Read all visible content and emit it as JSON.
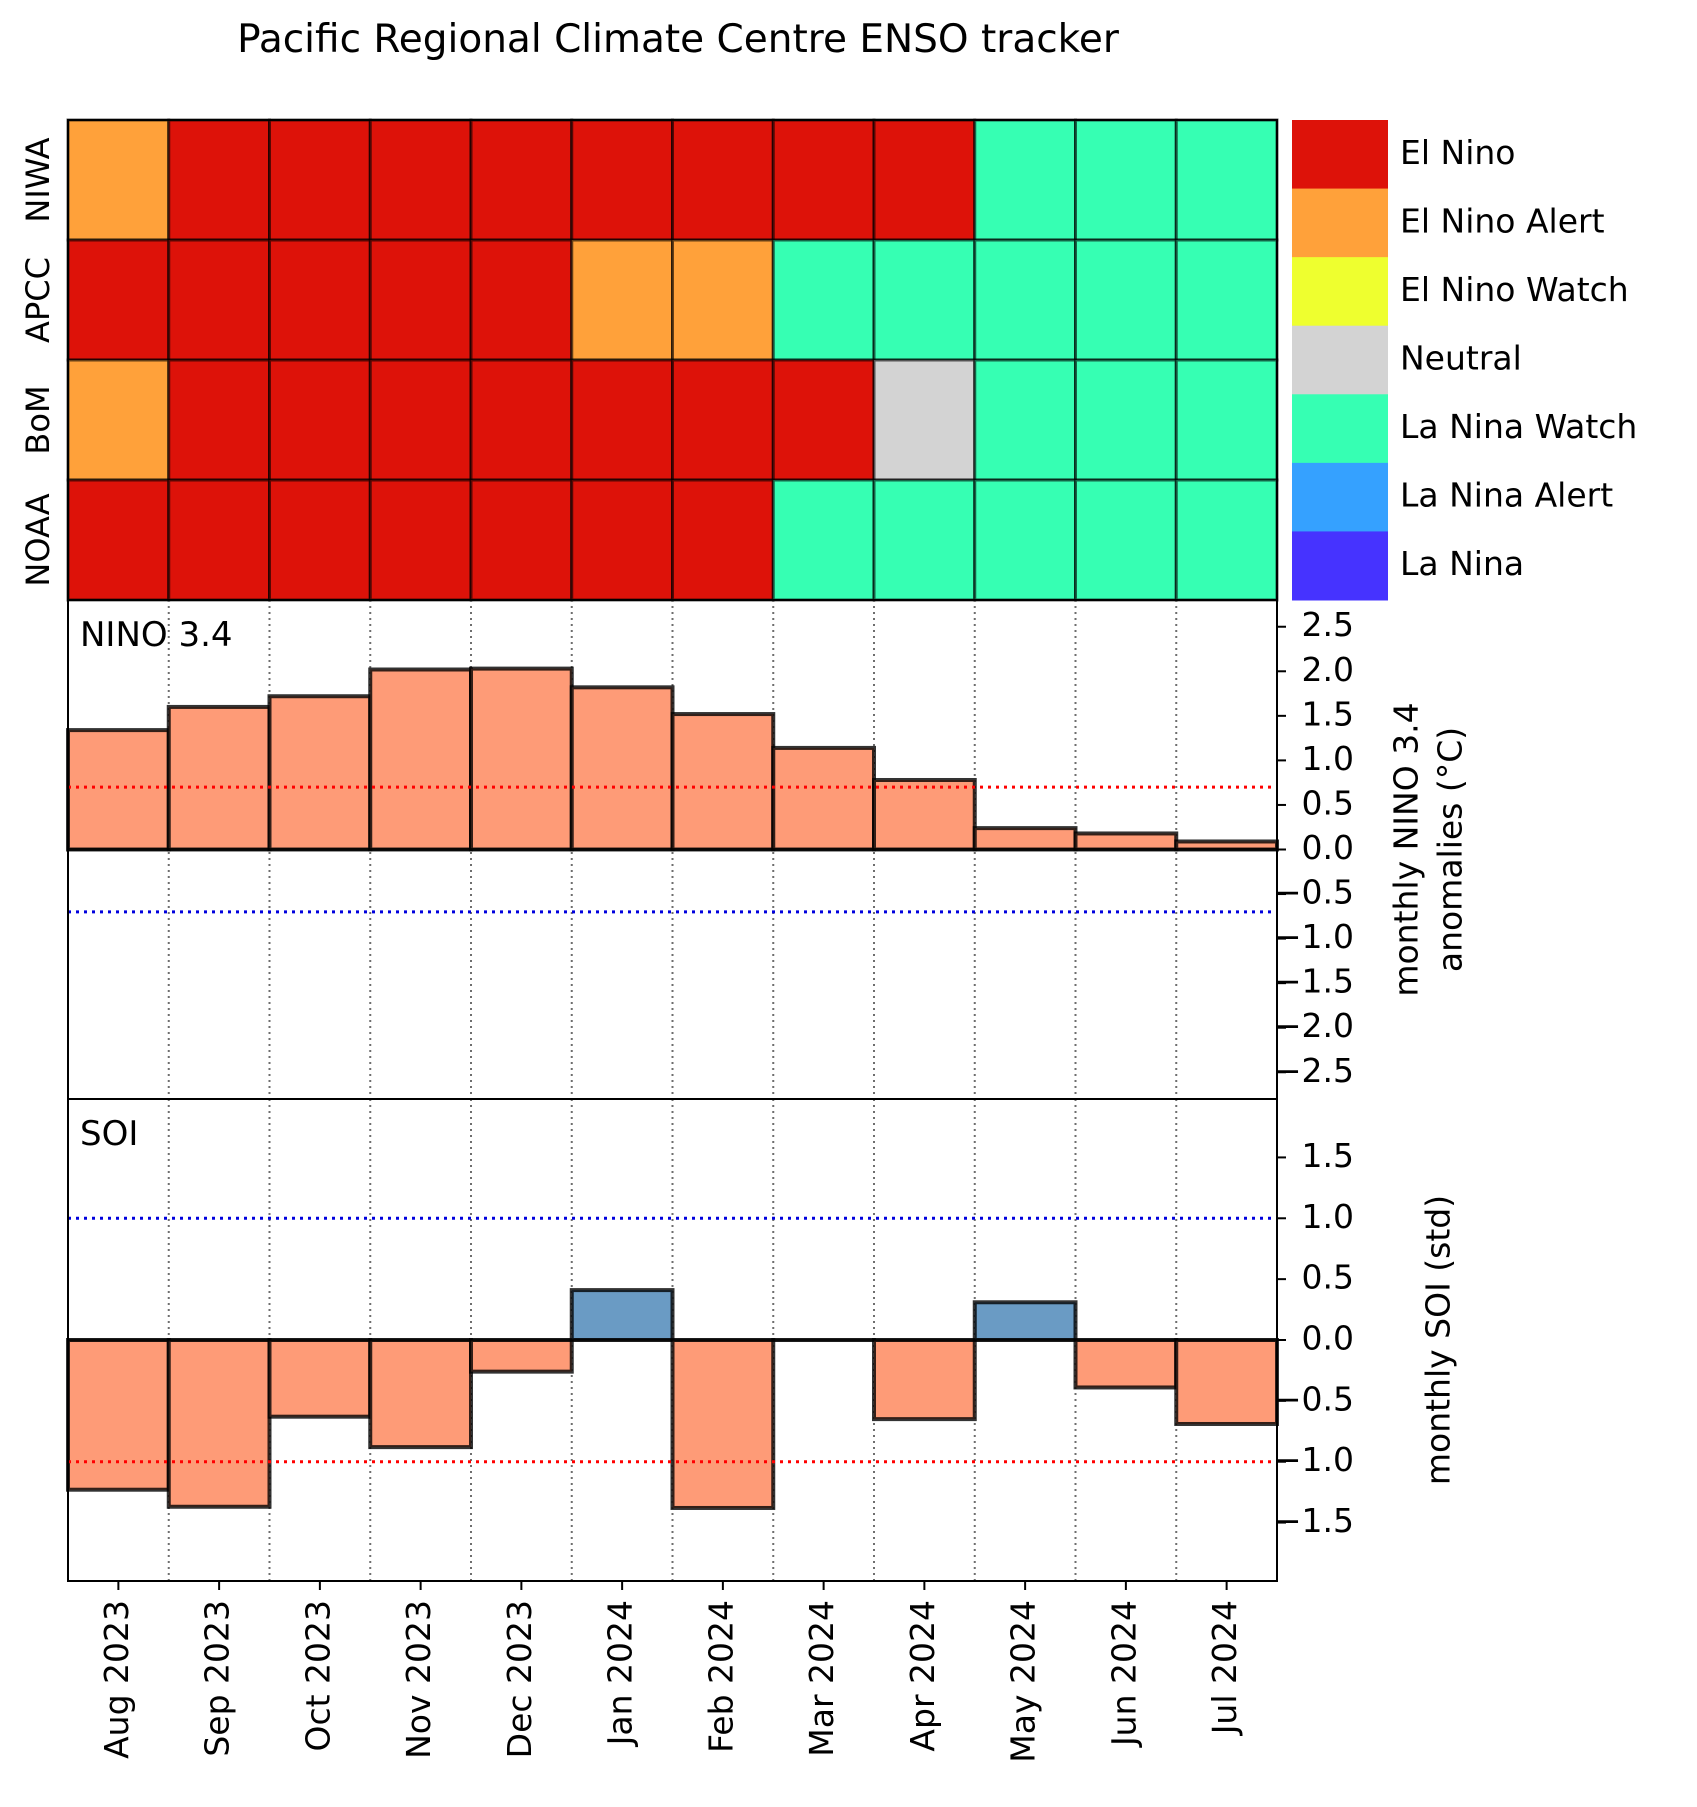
{
  "title": "Pacific Regional Climate Centre ENSO tracker",
  "chart_data": [
    {
      "type": "heatmap",
      "rows": [
        "NIWA",
        "APCC",
        "BoM",
        "NOAA"
      ],
      "columns": [
        "Aug 2023",
        "Sep 2023",
        "Oct 2023",
        "Nov 2023",
        "Dec 2023",
        "Jan 2024",
        "Feb 2024",
        "Mar 2024",
        "Apr 2024",
        "May 2024",
        "Jun 2024",
        "Jul 2024"
      ],
      "values": [
        [
          "El Nino Alert",
          "El Nino",
          "El Nino",
          "El Nino",
          "El Nino",
          "El Nino",
          "El Nino",
          "El Nino",
          "El Nino",
          "La Nina Watch",
          "La Nina Watch",
          "La Nina Watch"
        ],
        [
          "El Nino",
          "El Nino",
          "El Nino",
          "El Nino",
          "El Nino",
          "El Nino Alert",
          "El Nino Alert",
          "La Nina Watch",
          "La Nina Watch",
          "La Nina Watch",
          "La Nina Watch",
          "La Nina Watch"
        ],
        [
          "El Nino Alert",
          "El Nino",
          "El Nino",
          "El Nino",
          "El Nino",
          "El Nino",
          "El Nino",
          "El Nino",
          "Neutral",
          "La Nina Watch",
          "La Nina Watch",
          "La Nina Watch"
        ],
        [
          "El Nino",
          "El Nino",
          "El Nino",
          "El Nino",
          "El Nino",
          "El Nino",
          "El Nino",
          "La Nina Watch",
          "La Nina Watch",
          "La Nina Watch",
          "La Nina Watch",
          "La Nina Watch"
        ]
      ],
      "legend": [
        {
          "label": "El Nino",
          "color": "#dd1209"
        },
        {
          "label": "El Nino Alert",
          "color": "#ffa13a"
        },
        {
          "label": "El Nino Watch",
          "color": "#eeff2f"
        },
        {
          "label": "Neutral",
          "color": "#d3d3d3"
        },
        {
          "label": "La Nina Watch",
          "color": "#36ffb3"
        },
        {
          "label": "La Nina Alert",
          "color": "#35a1ff"
        },
        {
          "label": "La Nina",
          "color": "#4633ff"
        }
      ],
      "legend_placement": "right"
    },
    {
      "type": "bar",
      "annotation": "NINO 3.4",
      "ylabel": [
        "monthly NINO 3.4",
        "anomalies (°C)"
      ],
      "categories": [
        "Aug 2023",
        "Sep 2023",
        "Oct 2023",
        "Nov 2023",
        "Dec 2023",
        "Jan 2024",
        "Feb 2024",
        "Mar 2024",
        "Apr 2024",
        "May 2024",
        "Jun 2024",
        "Jul 2024"
      ],
      "values": [
        1.34,
        1.6,
        1.72,
        2.02,
        2.03,
        1.82,
        1.52,
        1.14,
        0.78,
        0.24,
        0.18,
        0.09
      ],
      "ylim": [
        -2.8,
        2.8
      ],
      "yticks": [
        "2.5",
        "2.0",
        "1.5",
        "1.0",
        "0.5",
        "0.0",
        "−0.5",
        "−1.0",
        "−1.5",
        "−2.0",
        "−2.5"
      ],
      "ytick_values": [
        2.5,
        2.0,
        1.5,
        1.0,
        0.5,
        0.0,
        -0.5,
        -1.0,
        -1.5,
        -2.0,
        -2.5
      ],
      "thresholds": [
        {
          "value": 0.7,
          "color": "#ff0000"
        },
        {
          "value": -0.7,
          "color": "#0000dd"
        }
      ],
      "colors": {
        "positive": "#fe9b77",
        "negative": "#6a9bc4"
      },
      "yaxis_side": "right",
      "grid": "vertical dotted"
    },
    {
      "type": "bar",
      "annotation": "SOI",
      "ylabel": [
        "monthly SOI (std)"
      ],
      "categories": [
        "Aug 2023",
        "Sep 2023",
        "Oct 2023",
        "Nov 2023",
        "Dec 2023",
        "Jan 2024",
        "Feb 2024",
        "Mar 2024",
        "Apr 2024",
        "May 2024",
        "Jun 2024",
        "Jul 2024"
      ],
      "values": [
        -1.23,
        -1.37,
        -0.63,
        -0.88,
        -0.26,
        0.41,
        -1.38,
        0.0,
        -0.65,
        0.31,
        -0.39,
        -0.69
      ],
      "ylim": [
        -1.98,
        1.98
      ],
      "yticks": [
        "1.5",
        "1.0",
        "0.5",
        "0.0",
        "−0.5",
        "−1.0",
        "−1.5"
      ],
      "ytick_values": [
        1.5,
        1.0,
        0.5,
        0.0,
        -0.5,
        -1.0,
        -1.5
      ],
      "thresholds": [
        {
          "value": 1.0,
          "color": "#0000dd"
        },
        {
          "value": -1.0,
          "color": "#ff0000"
        }
      ],
      "colors": {
        "positive": "#6a9bc4",
        "negative": "#fe9b77"
      },
      "yaxis_side": "right",
      "grid": "vertical dotted"
    }
  ]
}
